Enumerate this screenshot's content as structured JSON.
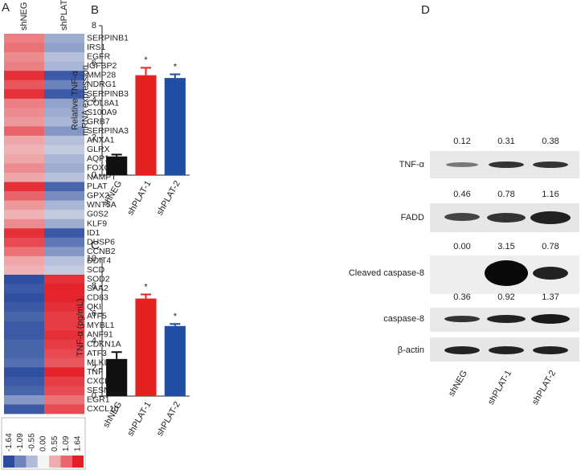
{
  "panel_labels": [
    "A",
    "B",
    "C",
    "D"
  ],
  "chart_data": [
    {
      "type": "heatmap",
      "categories": [
        "SERPINB1",
        "IRS1",
        "EGFR",
        "IGFBP2",
        "MMP28",
        "NDRG1",
        "SERPINB3",
        "COL8A1",
        "S100A9",
        "GRB7",
        "SERPINA3",
        "ANXA1",
        "GLRX",
        "AQP1",
        "FOXQ1",
        "NAMPT",
        "PLAT",
        "GPX2",
        "WNT5A",
        "G0S2",
        "KLF9",
        "ID1",
        "DUSP6",
        "CCNB2",
        "DDIT4",
        "SCD",
        "SOD2",
        "SAA2",
        "CD83",
        "QKI",
        "ATF5",
        "MYBL1",
        "ANF91",
        "CDKN1A",
        "ATF3",
        "MLKL",
        "TNF",
        "CXCL2",
        "SESN2",
        "EGR1",
        "CXCL10"
      ],
      "series": [
        {
          "name": "shNEG",
          "values": [
            0.9,
            1.0,
            0.8,
            0.9,
            1.5,
            1.2,
            1.5,
            0.9,
            0.8,
            0.7,
            1.1,
            0.6,
            0.5,
            0.6,
            0.8,
            0.6,
            1.5,
            1.1,
            0.7,
            0.5,
            0.8,
            1.5,
            1.3,
            1.0,
            0.6,
            0.5,
            -1.6,
            -1.5,
            -1.6,
            -1.5,
            -1.4,
            -1.5,
            -1.5,
            -1.4,
            -1.4,
            -1.3,
            -1.6,
            -1.5,
            -1.4,
            -0.9,
            -1.5
          ]
        },
        {
          "name": "shPLAT-1",
          "values": [
            -0.7,
            -0.8,
            -0.5,
            -0.6,
            -1.5,
            -1.1,
            -1.5,
            -0.8,
            -0.7,
            -0.6,
            -0.9,
            -0.5,
            -0.4,
            -0.6,
            -0.7,
            -0.5,
            -1.4,
            -1.0,
            -0.6,
            -0.4,
            -0.7,
            -1.5,
            -1.2,
            -0.9,
            -0.5,
            -0.4,
            1.5,
            1.6,
            1.6,
            1.5,
            1.4,
            1.4,
            1.5,
            1.4,
            1.3,
            1.2,
            1.6,
            1.4,
            1.3,
            1.0,
            1.3
          ]
        }
      ],
      "zlim": [
        -1.64,
        1.64
      ],
      "colormap": [
        "#2a4b9f",
        "#f4f4f4",
        "#e41e26"
      ],
      "colorbar_ticks": [
        -1.64,
        -1.09,
        -0.55,
        {
          "value": 0,
          "label": "0.00"
        },
        0.55,
        1.09,
        1.64
      ]
    },
    {
      "type": "bar",
      "ylabel": [
        "Relative TNF-α",
        "mRNA expression"
      ],
      "categories": [
        "shNEG",
        "shPLAT-1",
        "shPLAT-2"
      ],
      "values": [
        1.0,
        5.35,
        5.2
      ],
      "errors": [
        0.1,
        0.4,
        0.2
      ],
      "colors": [
        "#111111",
        "#e42320",
        "#1f4ea3"
      ],
      "annotations": [
        null,
        "*",
        "*"
      ],
      "ylim": [
        0,
        8
      ],
      "yticks": [
        0,
        2,
        4,
        6,
        8
      ]
    },
    {
      "type": "bar",
      "ylabel": [
        "TNF-α (pg/mL)"
      ],
      "categories": [
        "shNEG",
        "shPLAT-1",
        "shPLAT-2"
      ],
      "values": [
        2.7,
        7.1,
        5.1
      ],
      "errors": [
        0.5,
        0.3,
        0.15
      ],
      "colors": [
        "#111111",
        "#e42320",
        "#1f4ea3"
      ],
      "annotations": [
        null,
        "*",
        "*"
      ],
      "ylim": [
        0,
        10
      ],
      "yticks": [
        0,
        2,
        4,
        6,
        8,
        10
      ]
    }
  ],
  "blot": {
    "lanes": [
      "shNEG",
      "shPLAT-1",
      "shPLAT-2"
    ],
    "rows": [
      {
        "label": "TNF-α",
        "values": [
          "0.12",
          "0.31",
          "0.38"
        ]
      },
      {
        "label": "FADD",
        "values": [
          "0.46",
          "0.78",
          "1.16"
        ]
      },
      {
        "label": "Cleaved caspase-8",
        "values": [
          "0.00",
          "3.15",
          "0.78"
        ]
      },
      {
        "label": "caspase-8",
        "values": [
          "0.36",
          "0.92",
          "1.37"
        ]
      },
      {
        "label": "β-actin"
      }
    ]
  }
}
